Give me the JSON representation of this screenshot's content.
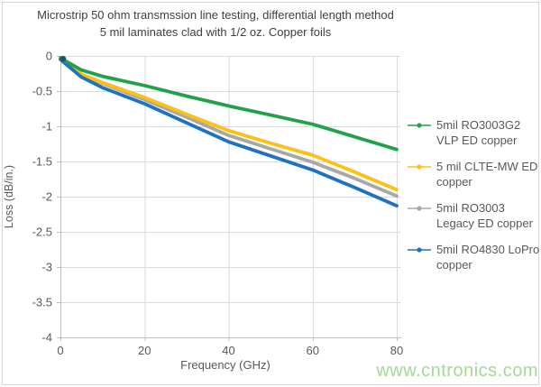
{
  "page": {
    "watermark": "www.cntronics.com"
  },
  "style": {
    "grid": "#dadada",
    "axis": "#bfbfbf",
    "text": "#595959",
    "title_text": "#3f3f3f",
    "watermark_green": "#8fcf7c",
    "start_marker": "#1f4e79"
  },
  "chart_data": {
    "type": "line",
    "title_line1": "Microstrip 50 ohm transmssion line testing, differential length method",
    "title_line2": "5 mil laminates clad with 1/2 oz. Copper foils",
    "xlabel": "Frequency (GHz)",
    "ylabel": "Loss (dB/in.)",
    "xlim": [
      0,
      80
    ],
    "ylim": [
      -4,
      0
    ],
    "x_ticks": [
      0,
      20,
      40,
      60,
      80
    ],
    "y_ticks": [
      0,
      -0.5,
      -1,
      -1.5,
      -2,
      -2.5,
      -3,
      -3.5,
      -4
    ],
    "grid": true,
    "legend_position": "right",
    "x": [
      0,
      5,
      10,
      20,
      30,
      40,
      50,
      60,
      70,
      80
    ],
    "series": [
      {
        "name": "5mil RO3003G2 VLP ED copper",
        "color": "#22a14c",
        "values": [
          -0.03,
          -0.2,
          -0.29,
          -0.42,
          -0.57,
          -0.71,
          -0.84,
          -0.97,
          -1.15,
          -1.33
        ]
      },
      {
        "name": "5 mil CLTE-MW ED copper",
        "color": "#fdc013",
        "values": [
          -0.04,
          -0.26,
          -0.38,
          -0.59,
          -0.83,
          -1.06,
          -1.24,
          -1.41,
          -1.65,
          -1.9
        ]
      },
      {
        "name": "5mil RO3003 Legacy ED copper",
        "color": "#a8a8a8",
        "values": [
          -0.04,
          -0.27,
          -0.39,
          -0.62,
          -0.87,
          -1.13,
          -1.32,
          -1.51,
          -1.74,
          -1.99
        ]
      },
      {
        "name": "5mil RO4830 LoPro copper",
        "color": "#1f72bf",
        "values": [
          -0.05,
          -0.3,
          -0.45,
          -0.68,
          -0.95,
          -1.22,
          -1.42,
          -1.62,
          -1.87,
          -2.13
        ]
      }
    ]
  }
}
